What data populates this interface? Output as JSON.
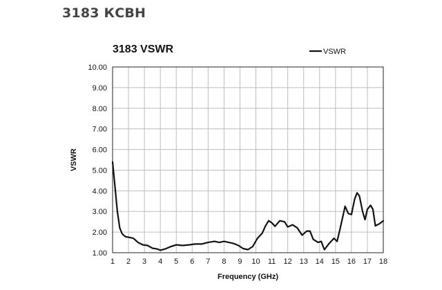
{
  "page": {
    "heading": "3183 КСВН"
  },
  "chart_data": {
    "type": "line",
    "title": "3183 VSWR",
    "xlabel": "Frequency (GHz)",
    "ylabel": "VSWR",
    "xlim": [
      1,
      18
    ],
    "ylim": [
      1,
      10
    ],
    "x_ticks": [
      "1",
      "2",
      "3",
      "4",
      "5",
      "6",
      "7",
      "8",
      "9",
      "10",
      "11",
      "12",
      "13",
      "14",
      "15",
      "16",
      "17",
      "18"
    ],
    "y_ticks": [
      "1.00",
      "2.00",
      "3.00",
      "4.00",
      "5.00",
      "6.00",
      "7.00",
      "8.00",
      "9.00",
      "10.00"
    ],
    "grid": true,
    "legend_position": "top-right",
    "series": [
      {
        "name": "VSWR",
        "color": "#111111",
        "points": [
          [
            1.0,
            5.4
          ],
          [
            1.15,
            4.2
          ],
          [
            1.3,
            3.0
          ],
          [
            1.45,
            2.2
          ],
          [
            1.6,
            1.92
          ],
          [
            1.8,
            1.78
          ],
          [
            2.0,
            1.75
          ],
          [
            2.3,
            1.7
          ],
          [
            2.6,
            1.5
          ],
          [
            2.9,
            1.38
          ],
          [
            3.2,
            1.35
          ],
          [
            3.5,
            1.22
          ],
          [
            3.8,
            1.18
          ],
          [
            4.0,
            1.12
          ],
          [
            4.3,
            1.18
          ],
          [
            4.6,
            1.28
          ],
          [
            5.0,
            1.38
          ],
          [
            5.4,
            1.35
          ],
          [
            5.8,
            1.38
          ],
          [
            6.2,
            1.42
          ],
          [
            6.6,
            1.42
          ],
          [
            7.0,
            1.5
          ],
          [
            7.4,
            1.55
          ],
          [
            7.7,
            1.5
          ],
          [
            8.0,
            1.55
          ],
          [
            8.3,
            1.5
          ],
          [
            8.6,
            1.45
          ],
          [
            8.9,
            1.35
          ],
          [
            9.2,
            1.2
          ],
          [
            9.5,
            1.15
          ],
          [
            9.8,
            1.3
          ],
          [
            10.1,
            1.7
          ],
          [
            10.4,
            1.95
          ],
          [
            10.6,
            2.3
          ],
          [
            10.8,
            2.55
          ],
          [
            11.0,
            2.45
          ],
          [
            11.2,
            2.28
          ],
          [
            11.5,
            2.55
          ],
          [
            11.8,
            2.5
          ],
          [
            12.0,
            2.25
          ],
          [
            12.3,
            2.35
          ],
          [
            12.6,
            2.2
          ],
          [
            12.9,
            1.85
          ],
          [
            13.2,
            2.05
          ],
          [
            13.4,
            2.05
          ],
          [
            13.6,
            1.65
          ],
          [
            13.9,
            1.5
          ],
          [
            14.1,
            1.55
          ],
          [
            14.3,
            1.15
          ],
          [
            14.6,
            1.45
          ],
          [
            14.9,
            1.7
          ],
          [
            15.1,
            1.55
          ],
          [
            15.3,
            2.2
          ],
          [
            15.6,
            3.25
          ],
          [
            15.8,
            2.9
          ],
          [
            16.0,
            2.85
          ],
          [
            16.2,
            3.6
          ],
          [
            16.35,
            3.9
          ],
          [
            16.5,
            3.75
          ],
          [
            16.7,
            3.0
          ],
          [
            16.85,
            2.6
          ],
          [
            17.0,
            3.1
          ],
          [
            17.2,
            3.3
          ],
          [
            17.35,
            3.1
          ],
          [
            17.5,
            2.3
          ],
          [
            17.75,
            2.4
          ],
          [
            18.0,
            2.55
          ]
        ]
      }
    ]
  }
}
